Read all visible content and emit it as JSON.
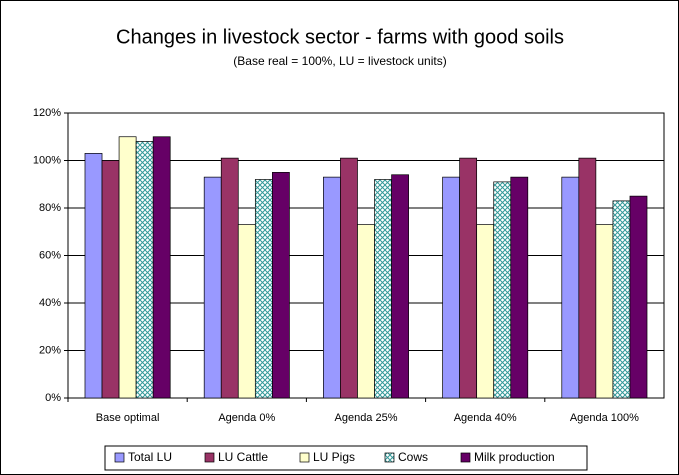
{
  "chart_data": {
    "type": "bar",
    "title": "Changes in livestock sector - farms with good soils",
    "subtitle": "(Base real = 100%, LU = livestock units)",
    "categories": [
      "Base optimal",
      "Agenda 0%",
      "Agenda 25%",
      "Agenda 40%",
      "Agenda 100%"
    ],
    "series": [
      {
        "name": "Total LU",
        "color": "#9999ff",
        "values": [
          103,
          93,
          93,
          93,
          93
        ]
      },
      {
        "name": "LU Cattle",
        "color": "#993366",
        "values": [
          100,
          101,
          101,
          101,
          101
        ]
      },
      {
        "name": "LU Pigs",
        "color": "#ffffcc",
        "values": [
          110,
          73,
          73,
          73,
          73
        ]
      },
      {
        "name": "Cows",
        "color": "#ccffff",
        "pattern": "crosshatch",
        "values": [
          108,
          92,
          92,
          91,
          83
        ]
      },
      {
        "name": "Milk production",
        "color": "#660066",
        "values": [
          110,
          95,
          94,
          93,
          85
        ]
      }
    ],
    "ylim": [
      0,
      120
    ],
    "yticks": [
      {
        "value": 0,
        "label": "0%"
      },
      {
        "value": 20,
        "label": "20%"
      },
      {
        "value": 40,
        "label": "40%"
      },
      {
        "value": 60,
        "label": "60%"
      },
      {
        "value": 80,
        "label": "80%"
      },
      {
        "value": 100,
        "label": "100%"
      },
      {
        "value": 120,
        "label": "120%"
      }
    ],
    "grid": true,
    "legend": "bottom"
  }
}
